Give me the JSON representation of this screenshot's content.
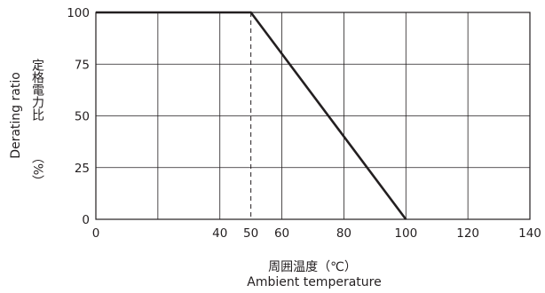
{
  "chart_data": {
    "type": "line",
    "x": [
      0,
      50,
      100
    ],
    "series": [
      {
        "values": [
          100,
          100,
          0
        ]
      }
    ],
    "reference_line_x": 50,
    "xticks": [
      0,
      40,
      50,
      60,
      80,
      100,
      120,
      140
    ],
    "yticks": [
      0,
      25,
      50,
      75,
      100
    ],
    "xlim": [
      0,
      140
    ],
    "ylim": [
      0,
      100
    ],
    "xlabel_ja": "周囲温度（℃）",
    "xlabel_en": "Ambient temperature",
    "ylabel_en": "Derating ratio",
    "ylabel_ja": "定格電力比",
    "ylabel_unit": "（%）",
    "grid": true,
    "colors": {
      "line": "#231f20",
      "grid": "#231f20"
    }
  }
}
